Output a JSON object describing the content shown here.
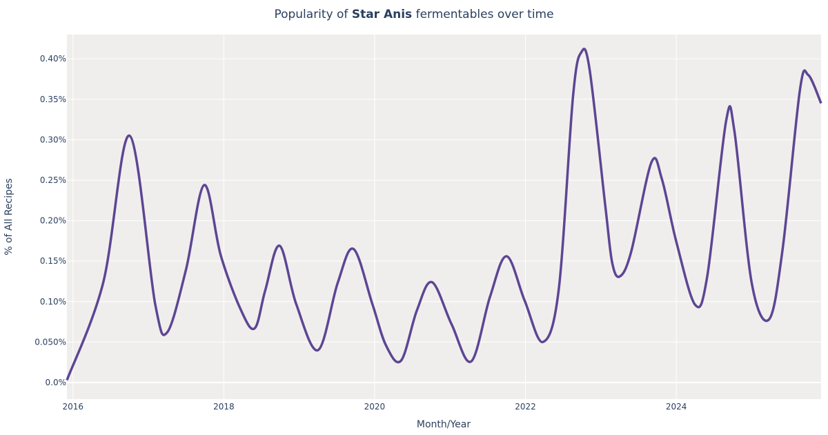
{
  "chart_data": {
    "type": "line",
    "title_prefix": "Popularity of ",
    "title_bold": "Star Anis",
    "title_suffix": " fermentables over time",
    "xlabel": "Month/Year",
    "ylabel": "% of All Recipes",
    "xlim": [
      2015.92,
      2025.92
    ],
    "ylim": [
      -0.0205,
      0.43
    ],
    "x_ticks": [
      2016,
      2018,
      2020,
      2022,
      2024
    ],
    "x_tick_labels": [
      "2016",
      "2018",
      "2020",
      "2022",
      "2024"
    ],
    "y_ticks": [
      0,
      0.05,
      0.1,
      0.15,
      0.2,
      0.25,
      0.3,
      0.35,
      0.4
    ],
    "y_tick_labels": [
      "0.0%",
      "0.050%",
      "0.10%",
      "0.15%",
      "0.20%",
      "0.25%",
      "0.30%",
      "0.35%",
      "0.40%"
    ],
    "grid": true,
    "colors": {
      "line": "#5e4593",
      "plot_bg": "#efeeed",
      "grid": "#ffffff",
      "text": "#2a3f5f"
    },
    "series": [
      {
        "x": [
          2015.92,
          2016.4,
          2016.75,
          2017.09,
          2017.25,
          2017.5,
          2017.74,
          2017.96,
          2018.23,
          2018.41,
          2018.55,
          2018.74,
          2018.96,
          2019.25,
          2019.51,
          2019.72,
          2019.97,
          2020.15,
          2020.35,
          2020.56,
          2020.76,
          2021.02,
          2021.28,
          2021.53,
          2021.75,
          2021.99,
          2022.23,
          2022.44,
          2022.63,
          2022.74,
          2022.85,
          2023.06,
          2023.15,
          2023.25,
          2023.4,
          2023.67,
          2023.81,
          2024.0,
          2024.25,
          2024.41,
          2024.66,
          2024.77,
          2025.0,
          2025.23,
          2025.41,
          2025.64,
          2025.75,
          2025.92
        ],
        "y": [
          0.003,
          0.123,
          0.305,
          0.097,
          0.062,
          0.14,
          0.244,
          0.157,
          0.089,
          0.067,
          0.114,
          0.169,
          0.097,
          0.04,
          0.123,
          0.165,
          0.097,
          0.046,
          0.027,
          0.089,
          0.124,
          0.072,
          0.026,
          0.106,
          0.156,
          0.101,
          0.05,
          0.114,
          0.353,
          0.408,
          0.387,
          0.217,
          0.148,
          0.131,
          0.161,
          0.272,
          0.251,
          0.174,
          0.096,
          0.131,
          0.323,
          0.311,
          0.123,
          0.078,
          0.165,
          0.362,
          0.38,
          0.345
        ]
      }
    ]
  }
}
